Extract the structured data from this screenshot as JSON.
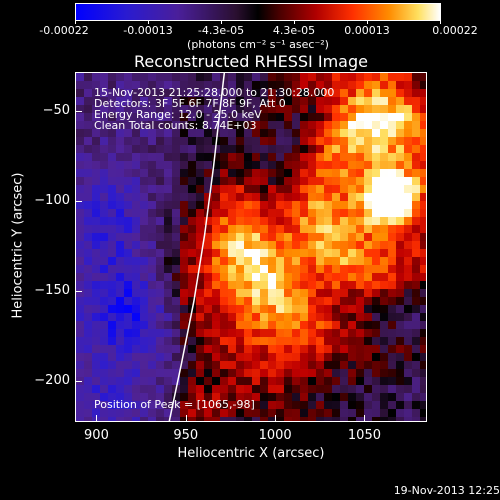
{
  "colorbar": {
    "ticks": [
      "-0.00022",
      "-0.00013",
      "-4.3e-05",
      "4.3e-05",
      "0.00013",
      "0.00022"
    ],
    "unit": "(photons cm⁻² s⁻¹ asec⁻²)"
  },
  "chart_data": {
    "type": "heatmap",
    "title": "Reconstructed RHESSI Image",
    "xlabel": "Heliocentric X (arcsec)",
    "ylabel": "Heliocentric Y (arcsec)",
    "xlim": [
      888,
      1085
    ],
    "ylim": [
      -223,
      -28
    ],
    "x_ticks": [
      900,
      950,
      1000,
      1050
    ],
    "y_ticks": [
      -50,
      -100,
      -150,
      -200
    ],
    "color_range": [
      -0.00022,
      0.00022
    ],
    "colormap": "blue-purple-black-red-yellow-white",
    "limb_points": [
      [
        940,
        -223
      ],
      [
        947,
        -190
      ],
      [
        954,
        -155
      ],
      [
        960,
        -118
      ],
      [
        965,
        -80
      ],
      [
        969,
        -45
      ],
      [
        971,
        -28
      ]
    ],
    "peak_position": [
      1065,
      -98
    ],
    "annotations": [
      "15-Nov-2013 21:25:28.000 to 21:30:28.000",
      "Detectors: 3F 5F 6F 7F 8F 9F, Att 0",
      "Energy Range: 12.0 - 25.0 keV",
      "Clean      Total counts: 8.74E+03"
    ],
    "peak_label": "Position of Peak = [1065,-98]"
  },
  "footer": {
    "timestamp": "19-Nov-2013 12:25"
  }
}
